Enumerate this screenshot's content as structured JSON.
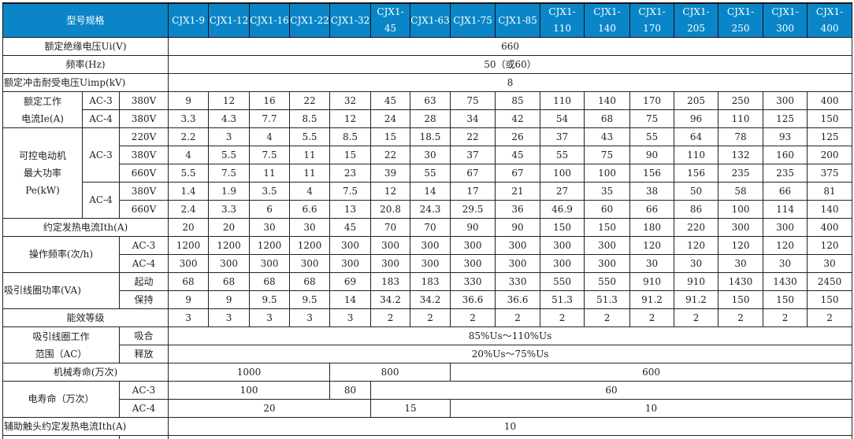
{
  "header": {
    "label": "型号规格",
    "models": [
      "CJX1-9",
      "CJX1-12",
      "CJX1-16",
      "CJX1-22",
      "CJX1-32",
      "CJX1-45",
      "CJX1-63",
      "CJX1-75",
      "CJX1-85",
      "CJX1-110",
      "CJX1-140",
      "CJX1-170",
      "CJX1-205",
      "CJX1-250",
      "CJX1-300",
      "CJX1-400"
    ]
  },
  "colors": {
    "header_bg": "#0a86c8",
    "header_text": "#ffffff",
    "border": "#222222"
  },
  "insulation_voltage": {
    "label": "额定绝缘电压Ui(V)",
    "value": "660"
  },
  "frequency": {
    "label": "频率(Hz)",
    "value": "50（或60）"
  },
  "impulse_voltage": {
    "label": "额定冲击耐受电压Uimp(kV)",
    "value": "8"
  },
  "rated_current": {
    "label": "额定工作\n电流Ie(A)",
    "rows": [
      {
        "category": "AC-3",
        "voltage": "380V",
        "values": [
          "9",
          "12",
          "16",
          "22",
          "32",
          "45",
          "63",
          "75",
          "85",
          "110",
          "140",
          "170",
          "205",
          "250",
          "300",
          "400"
        ]
      },
      {
        "category": "AC-4",
        "voltage": "380V",
        "values": [
          "3.3",
          "4.3",
          "7.7",
          "8.5",
          "12",
          "24",
          "28",
          "34",
          "42",
          "54",
          "68",
          "75",
          "96",
          "110",
          "125",
          "150"
        ]
      }
    ]
  },
  "motor_power": {
    "label": "可控电动机\n最大功率\nPe(kW)",
    "groups": [
      {
        "category": "AC-3",
        "rows": [
          {
            "voltage": "220V",
            "values": [
              "2.2",
              "3",
              "4",
              "5.5",
              "8.5",
              "15",
              "18.5",
              "22",
              "26",
              "37",
              "43",
              "55",
              "64",
              "78",
              "93",
              "125"
            ]
          },
          {
            "voltage": "380V",
            "values": [
              "4",
              "5.5",
              "7.5",
              "11",
              "15",
              "22",
              "30",
              "37",
              "45",
              "55",
              "75",
              "90",
              "110",
              "132",
              "160",
              "200"
            ]
          },
          {
            "voltage": "660V",
            "values": [
              "5.5",
              "7.5",
              "11",
              "11",
              "23",
              "39",
              "55",
              "67",
              "67",
              "100",
              "100",
              "156",
              "156",
              "235",
              "235",
              "375"
            ]
          }
        ]
      },
      {
        "category": "AC-4",
        "rows": [
          {
            "voltage": "380V",
            "values": [
              "1.4",
              "1.9",
              "3.5",
              "4",
              "7.5",
              "12",
              "14",
              "17",
              "21",
              "27",
              "35",
              "38",
              "50",
              "58",
              "66",
              "81"
            ]
          },
          {
            "voltage": "660V",
            "values": [
              "2.4",
              "3.3",
              "6",
              "6.6",
              "13",
              "20.8",
              "24.3",
              "29.5",
              "36",
              "46.9",
              "60",
              "66",
              "86",
              "100",
              "114",
              "140"
            ]
          }
        ]
      }
    ]
  },
  "thermal_current": {
    "label": "约定发热电流Ith(A)",
    "values": [
      "20",
      "20",
      "30",
      "30",
      "45",
      "70",
      "70",
      "90",
      "90",
      "150",
      "150",
      "180",
      "220",
      "300",
      "300",
      "400"
    ]
  },
  "operating_frequency": {
    "label": "操作频率(次/h)",
    "rows": [
      {
        "category": "AC-3",
        "values": [
          "1200",
          "1200",
          "1200",
          "1200",
          "300",
          "300",
          "300",
          "300",
          "300",
          "300",
          "300",
          "120",
          "120",
          "120",
          "120",
          "120"
        ]
      },
      {
        "category": "AC-4",
        "values": [
          "300",
          "300",
          "300",
          "300",
          "300",
          "300",
          "300",
          "300",
          "300",
          "300",
          "300",
          "30",
          "30",
          "30",
          "30",
          "30"
        ]
      }
    ]
  },
  "coil_power": {
    "label": "吸引线圈功率(VA)",
    "rows": [
      {
        "category": "起动",
        "values": [
          "68",
          "68",
          "68",
          "68",
          "69",
          "183",
          "183",
          "330",
          "330",
          "550",
          "550",
          "910",
          "910",
          "1430",
          "1430",
          "2450"
        ]
      },
      {
        "category": "保持",
        "values": [
          "9",
          "9",
          "9.5",
          "9.5",
          "14",
          "34.2",
          "34.2",
          "36.6",
          "36.6",
          "51.3",
          "51.3",
          "91.2",
          "91.2",
          "150",
          "150",
          "150"
        ]
      }
    ]
  },
  "efficiency_class": {
    "label": "能效等级",
    "values": [
      "3",
      "3",
      "3",
      "3",
      "3",
      "2",
      "2",
      "2",
      "2",
      "2",
      "2",
      "2",
      "2",
      "2",
      "2",
      "2"
    ]
  },
  "coil_range": {
    "label": "吸引线圈工作\n范围（AC）",
    "rows": [
      {
        "category": "吸合",
        "value": "85%Us～110%Us"
      },
      {
        "category": "释放",
        "value": "20%Us～75%Us"
      }
    ]
  },
  "mechanical_life": {
    "label": "机械寿命(万次)",
    "segments": [
      {
        "value": "1000",
        "models": 4
      },
      {
        "value": "800",
        "models": 3
      },
      {
        "value": "600",
        "models": 9
      }
    ]
  },
  "electrical_life": {
    "label": "电寿命（万次）",
    "rows": [
      {
        "category": "AC-3",
        "segments": [
          {
            "value": "100",
            "models": 4
          },
          {
            "value": "80",
            "models": 1
          },
          {
            "value": "60",
            "models": 11
          }
        ]
      },
      {
        "category": "AC-4",
        "segments": [
          {
            "value": "20",
            "models": 5
          },
          {
            "value": "15",
            "models": 2
          },
          {
            "value": "10",
            "models": 9
          }
        ]
      }
    ]
  },
  "aux_thermal_current": {
    "label": "辅助触头约定发热电流Ith(A)",
    "value": "10"
  }
}
